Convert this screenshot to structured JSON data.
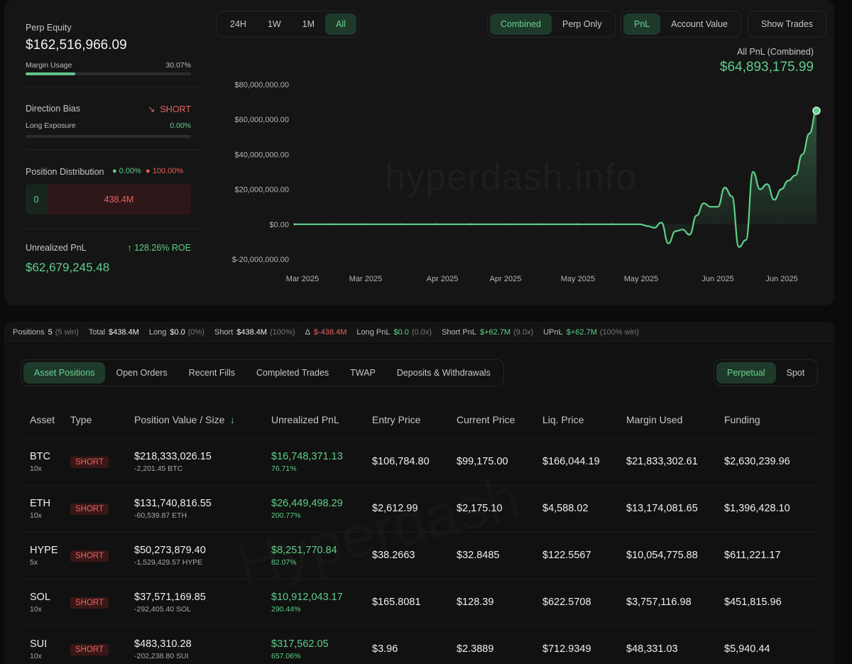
{
  "left": {
    "equity_label": "Perp Equity",
    "equity_value": "$162,516,966.09",
    "margin_label": "Margin Usage",
    "margin_value": "30.07%",
    "margin_fraction": 0.3007,
    "bias_label": "Direction Bias",
    "bias_value": "SHORT",
    "long_exp_label": "Long Exposure",
    "long_exp_value": "0.00%",
    "dist_label": "Position Distribution",
    "dist_long": "0.00%",
    "dist_short": "100.00%",
    "dist_long_amount": "0",
    "dist_short_amount": "438.4M",
    "upnl_label": "Unrealized PnL",
    "upnl_roe": "128.26% ROE",
    "upnl_value": "$62,679,245.48"
  },
  "range_tabs": [
    "24H",
    "1W",
    "1M",
    "All"
  ],
  "range_active": "All",
  "mode_tabs": [
    "Combined",
    "Perp Only"
  ],
  "metric_tabs": [
    "PnL",
    "Account Value"
  ],
  "show_trades": "Show Trades",
  "chart_header": {
    "label": "All PnL (Combined)",
    "value": "$64,893,175.99"
  },
  "watermark": "hyperdash.info",
  "chart_data": {
    "type": "area",
    "title": "All PnL (Combined)",
    "y_ticks": [
      "$80,000,000.00",
      "$60,000,000.00",
      "$40,000,000.00",
      "$20,000,000.00",
      "$0.00",
      "$-20,000,000.00"
    ],
    "x_ticks": [
      "Mar 2025",
      "Mar 2025",
      "Apr 2025",
      "Apr 2025",
      "May 2025",
      "May 2025",
      "Jun 2025",
      "Jun 2025"
    ],
    "ylim": [
      -20000000,
      80000000
    ],
    "series": [
      {
        "values": [
          0,
          0,
          0,
          0,
          0,
          0,
          0,
          0,
          0,
          0,
          0,
          0,
          0,
          0,
          0,
          0,
          0,
          0,
          0,
          0,
          0,
          0,
          0,
          0,
          0,
          0,
          0,
          0,
          0,
          0,
          0,
          0,
          0,
          0,
          0,
          0,
          0,
          0,
          0,
          0,
          0,
          0,
          0,
          0,
          0,
          0,
          0,
          0,
          0,
          0,
          -1000000,
          -2000000,
          1000000,
          -11000000,
          -4000000,
          -3000000,
          -6000000,
          5000000,
          12000000,
          10000000,
          10000000,
          21000000,
          16000000,
          -13000000,
          -9000000,
          30000000,
          20000000,
          23000000,
          14000000,
          20000000,
          25000000,
          28000000,
          40000000,
          52000000,
          65000000
        ]
      }
    ]
  },
  "summary": {
    "positions_label": "Positions",
    "positions_value": "5",
    "positions_meta": "(5 win)",
    "total_label": "Total",
    "total_value": "$438.4M",
    "long_label": "Long",
    "long_value": "$0.0",
    "long_meta": "(0%)",
    "short_label": "Short",
    "short_value": "$438.4M",
    "short_meta": "(100%)",
    "delta_label": "Δ",
    "delta_value": "$-438.4M",
    "longpnl_label": "Long PnL",
    "longpnl_value": "$0.0",
    "longpnl_meta": "(0.0x)",
    "shortpnl_label": "Short PnL",
    "shortpnl_value": "$+62.7M",
    "shortpnl_meta": "(9.0x)",
    "upnl_label": "UPnL",
    "upnl_value": "$+62.7M",
    "upnl_meta": "(100% win)"
  },
  "tabs": [
    "Asset Positions",
    "Open Orders",
    "Recent Fills",
    "Completed Trades",
    "TWAP",
    "Deposits & Withdrawals"
  ],
  "market_tabs": [
    "Perpetual",
    "Spot"
  ],
  "table": {
    "headers": [
      "Asset",
      "Type",
      "Position Value / Size",
      "Unrealized PnL",
      "Entry Price",
      "Current Price",
      "Liq. Price",
      "Margin Used",
      "Funding"
    ],
    "sort_icon": "↓",
    "rows": [
      {
        "asset": "BTC",
        "lev": "10x",
        "type": "SHORT",
        "value": "$218,333,026.15",
        "size": "-2,201.45 BTC",
        "pnl": "$16,748,371.13",
        "pnl_pct": "76.71%",
        "entry": "$106,784.80",
        "current": "$99,175.00",
        "liq": "$166,044.19",
        "margin": "$21,833,302.61",
        "funding": "$2,630,239.96"
      },
      {
        "asset": "ETH",
        "lev": "10x",
        "type": "SHORT",
        "value": "$131,740,816.55",
        "size": "-60,539.87 ETH",
        "pnl": "$26,449,498.29",
        "pnl_pct": "200.77%",
        "entry": "$2,612.99",
        "current": "$2,175.10",
        "liq": "$4,588.02",
        "margin": "$13,174,081.65",
        "funding": "$1,396,428.10"
      },
      {
        "asset": "HYPE",
        "lev": "5x",
        "type": "SHORT",
        "value": "$50,273,879.40",
        "size": "-1,529,429.57 HYPE",
        "pnl": "$8,251,770.84",
        "pnl_pct": "82.07%",
        "entry": "$38.2663",
        "current": "$32.8485",
        "liq": "$122.5567",
        "margin": "$10,054,775.88",
        "funding": "$611,221.17"
      },
      {
        "asset": "SOL",
        "lev": "10x",
        "type": "SHORT",
        "value": "$37,571,169.85",
        "size": "-292,405.40 SOL",
        "pnl": "$10,912,043.17",
        "pnl_pct": "290.44%",
        "entry": "$165.8081",
        "current": "$128.39",
        "liq": "$622.5708",
        "margin": "$3,757,116.98",
        "funding": "$451,815.96"
      },
      {
        "asset": "SUI",
        "lev": "10x",
        "type": "SHORT",
        "value": "$483,310.28",
        "size": "-202,238.80 SUI",
        "pnl": "$317,562.05",
        "pnl_pct": "657.06%",
        "entry": "$3.96",
        "current": "$2.3889",
        "liq": "$712.9349",
        "margin": "$48,331.03",
        "funding": "$5,940.44"
      }
    ]
  },
  "colors": {
    "accent": "#5fcf8a",
    "short": "#e8625e",
    "panel": "#151515"
  }
}
